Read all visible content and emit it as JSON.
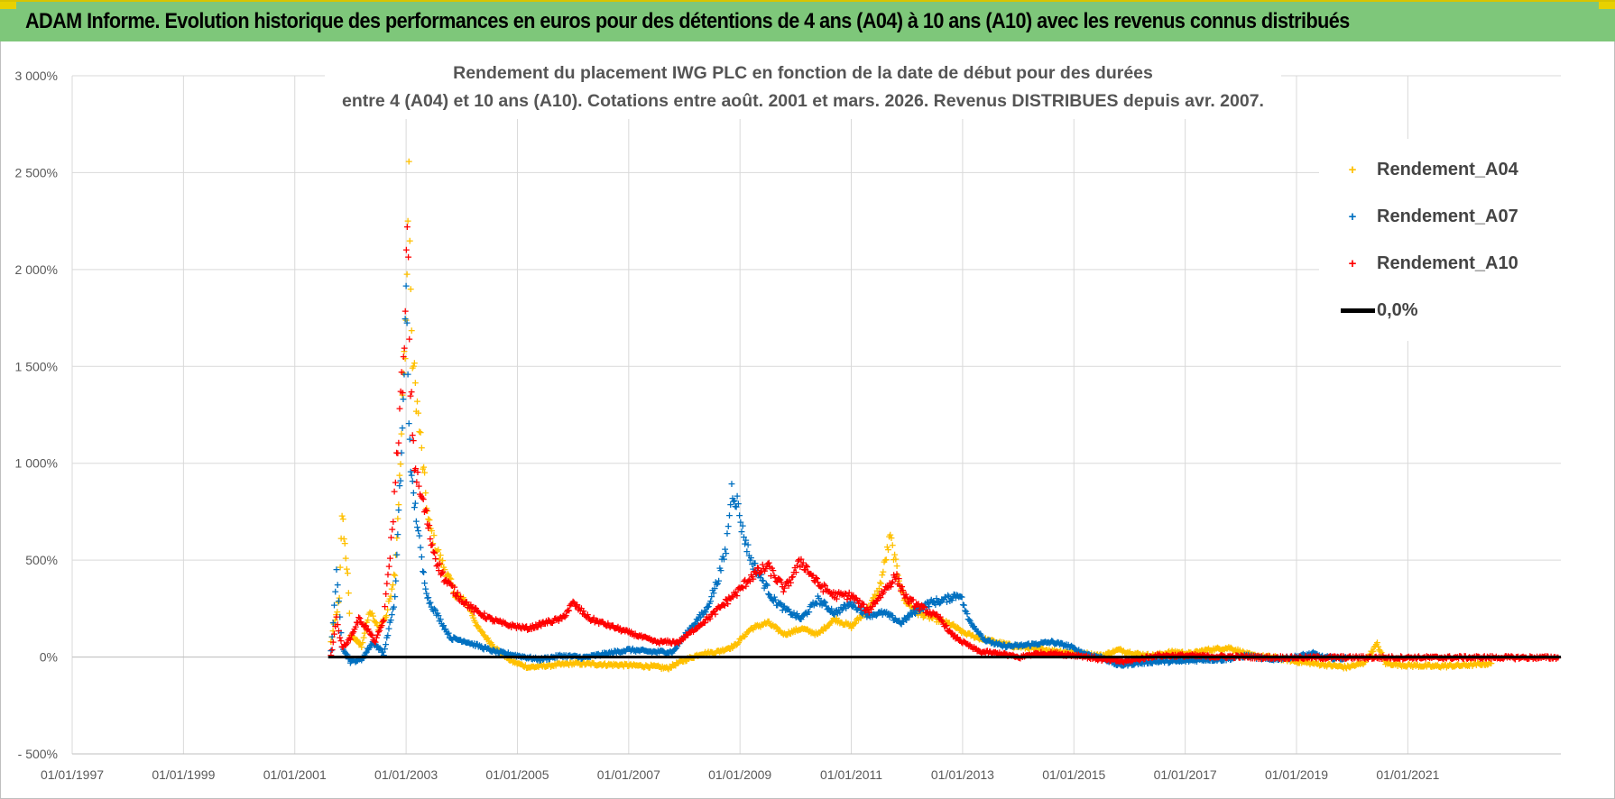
{
  "banner": {
    "title": "ADAM Informe. Evolution historique des performances en euros pour des détentions de 4 ans (A04) à 10 ans (A10) avec les revenus connus distribués"
  },
  "colors": {
    "banner_bg": "#7ec77a",
    "a04": "#ffc000",
    "a07": "#0070c0",
    "a10": "#ff0000",
    "zero": "#000000",
    "grid": "#d9d9d9"
  },
  "chart_data": {
    "type": "scatter",
    "title_line1": "Rendement du placement IWG PLC en fonction de la date de début pour des durées",
    "title_line2": "entre 4 (A04) et 10 ans (A10).  Cotations entre août. 2001 et mars. 2026.  Revenus DISTRIBUES depuis avr. 2007.",
    "x_start": 1997.0,
    "x_end": 2023.75,
    "x_tick_values": [
      1997,
      1999,
      2001,
      2003,
      2005,
      2007,
      2009,
      2011,
      2013,
      2015,
      2017,
      2019,
      2021
    ],
    "x_tick_labels": [
      "01/01/1997",
      "01/01/1999",
      "01/01/2001",
      "01/01/2003",
      "01/01/2005",
      "01/01/2007",
      "01/01/2009",
      "01/01/2011",
      "01/01/2013",
      "01/01/2015",
      "01/01/2017",
      "01/01/2019",
      "01/01/2021"
    ],
    "ylim": [
      -500,
      3000
    ],
    "y_tick_values": [
      -500,
      0,
      500,
      1000,
      1500,
      2000,
      2500,
      3000
    ],
    "y_tick_labels": [
      "- 500%",
      "0%",
      "500%",
      "1 000%",
      "1 500%",
      "2 000%",
      "2 500%",
      "3 000%"
    ],
    "grid": true,
    "legend_position": "top-right",
    "legend": [
      {
        "label": "Rendement_A04",
        "marker": "+",
        "color": "#ffc000"
      },
      {
        "label": "Rendement_A07",
        "marker": "+",
        "color": "#0070c0"
      },
      {
        "label": "Rendement_A10",
        "marker": "+",
        "color": "#ff0000"
      },
      {
        "label": "0,0%",
        "marker": "line",
        "color": "#000000"
      }
    ],
    "zero_line": {
      "x_from": 2001.6,
      "x_to": 2023.75,
      "y": 0
    },
    "series": [
      {
        "name": "Rendement_A04",
        "color": "#ffc000",
        "points": [
          [
            2001.65,
            80
          ],
          [
            2001.8,
            300
          ],
          [
            2001.85,
            745
          ],
          [
            2001.95,
            420
          ],
          [
            2002.0,
            120
          ],
          [
            2002.2,
            60
          ],
          [
            2002.35,
            240
          ],
          [
            2002.5,
            150
          ],
          [
            2002.65,
            220
          ],
          [
            2002.8,
            450
          ],
          [
            2002.9,
            1000
          ],
          [
            2002.95,
            1450
          ],
          [
            2003.0,
            1730
          ],
          [
            2003.05,
            2510
          ],
          [
            2003.1,
            1600
          ],
          [
            2003.2,
            1300
          ],
          [
            2003.3,
            1000
          ],
          [
            2003.4,
            700
          ],
          [
            2003.5,
            600
          ],
          [
            2003.6,
            520
          ],
          [
            2003.75,
            420
          ],
          [
            2003.9,
            320
          ],
          [
            2004.1,
            280
          ],
          [
            2004.3,
            150
          ],
          [
            2004.6,
            50
          ],
          [
            2004.9,
            -20
          ],
          [
            2005.2,
            -50
          ],
          [
            2005.6,
            -40
          ],
          [
            2006.0,
            -30
          ],
          [
            2006.5,
            -35
          ],
          [
            2007.0,
            -40
          ],
          [
            2007.4,
            -45
          ],
          [
            2007.7,
            -55
          ],
          [
            2007.95,
            -20
          ],
          [
            2008.3,
            20
          ],
          [
            2008.6,
            30
          ],
          [
            2008.9,
            60
          ],
          [
            2009.2,
            150
          ],
          [
            2009.5,
            180
          ],
          [
            2009.8,
            120
          ],
          [
            2010.1,
            150
          ],
          [
            2010.4,
            120
          ],
          [
            2010.7,
            200
          ],
          [
            2011.0,
            160
          ],
          [
            2011.3,
            250
          ],
          [
            2011.5,
            350
          ],
          [
            2011.7,
            620
          ],
          [
            2011.8,
            480
          ],
          [
            2011.95,
            300
          ],
          [
            2012.2,
            230
          ],
          [
            2012.5,
            200
          ],
          [
            2012.8,
            170
          ],
          [
            2013.0,
            130
          ],
          [
            2013.3,
            100
          ],
          [
            2013.6,
            80
          ],
          [
            2013.9,
            60
          ],
          [
            2014.2,
            50
          ],
          [
            2014.5,
            40
          ],
          [
            2014.8,
            30
          ],
          [
            2015.2,
            20
          ],
          [
            2015.5,
            10
          ],
          [
            2015.8,
            40
          ],
          [
            2016.1,
            20
          ],
          [
            2016.4,
            10
          ],
          [
            2016.8,
            30
          ],
          [
            2017.1,
            20
          ],
          [
            2017.4,
            40
          ],
          [
            2017.8,
            50
          ],
          [
            2018.2,
            10
          ],
          [
            2018.6,
            0
          ],
          [
            2019.0,
            -20
          ],
          [
            2019.3,
            -30
          ],
          [
            2019.6,
            -40
          ],
          [
            2019.9,
            -50
          ],
          [
            2020.2,
            -30
          ],
          [
            2020.45,
            70
          ],
          [
            2020.6,
            -30
          ],
          [
            2021.0,
            -40
          ],
          [
            2021.5,
            -45
          ],
          [
            2022.0,
            -40
          ],
          [
            2022.5,
            -30
          ]
        ]
      },
      {
        "name": "Rendement_A07",
        "color": "#0070c0",
        "points": [
          [
            2001.65,
            30
          ],
          [
            2001.75,
            430
          ],
          [
            2001.85,
            60
          ],
          [
            2002.0,
            -20
          ],
          [
            2002.2,
            -10
          ],
          [
            2002.4,
            80
          ],
          [
            2002.6,
            20
          ],
          [
            2002.8,
            300
          ],
          [
            2002.9,
            950
          ],
          [
            2002.95,
            1300
          ],
          [
            2003.0,
            1890
          ],
          [
            2003.05,
            1250
          ],
          [
            2003.1,
            900
          ],
          [
            2003.2,
            700
          ],
          [
            2003.3,
            450
          ],
          [
            2003.4,
            300
          ],
          [
            2003.6,
            200
          ],
          [
            2003.8,
            100
          ],
          [
            2004.0,
            90
          ],
          [
            2004.3,
            60
          ],
          [
            2004.6,
            30
          ],
          [
            2005.0,
            10
          ],
          [
            2005.4,
            -10
          ],
          [
            2005.8,
            10
          ],
          [
            2006.2,
            0
          ],
          [
            2006.6,
            20
          ],
          [
            2007.0,
            40
          ],
          [
            2007.4,
            30
          ],
          [
            2007.8,
            30
          ],
          [
            2008.1,
            150
          ],
          [
            2008.4,
            250
          ],
          [
            2008.6,
            400
          ],
          [
            2008.75,
            560
          ],
          [
            2008.85,
            870
          ],
          [
            2008.95,
            800
          ],
          [
            2009.05,
            650
          ],
          [
            2009.2,
            500
          ],
          [
            2009.4,
            400
          ],
          [
            2009.6,
            300
          ],
          [
            2009.8,
            250
          ],
          [
            2010.1,
            200
          ],
          [
            2010.4,
            300
          ],
          [
            2010.7,
            230
          ],
          [
            2011.0,
            280
          ],
          [
            2011.3,
            220
          ],
          [
            2011.6,
            230
          ],
          [
            2011.9,
            180
          ],
          [
            2012.1,
            230
          ],
          [
            2012.4,
            280
          ],
          [
            2012.7,
            300
          ],
          [
            2012.95,
            330
          ],
          [
            2013.1,
            200
          ],
          [
            2013.4,
            90
          ],
          [
            2013.7,
            60
          ],
          [
            2014.0,
            60
          ],
          [
            2014.3,
            70
          ],
          [
            2014.6,
            80
          ],
          [
            2014.9,
            60
          ],
          [
            2015.2,
            20
          ],
          [
            2015.5,
            0
          ],
          [
            2015.8,
            -40
          ],
          [
            2016.1,
            -30
          ],
          [
            2016.5,
            -20
          ],
          [
            2016.9,
            -20
          ],
          [
            2017.3,
            -10
          ],
          [
            2017.7,
            -10
          ],
          [
            2018.1,
            10
          ],
          [
            2018.5,
            -10
          ],
          [
            2018.9,
            0
          ],
          [
            2019.1,
            10
          ],
          [
            2019.3,
            20
          ],
          [
            2019.5,
            0
          ],
          [
            2019.9,
            -5
          ]
        ]
      },
      {
        "name": "Rendement_A10",
        "color": "#ff0000",
        "points": [
          [
            2001.65,
            10
          ],
          [
            2001.75,
            200
          ],
          [
            2001.85,
            50
          ],
          [
            2002.0,
            100
          ],
          [
            2002.15,
            200
          ],
          [
            2002.3,
            150
          ],
          [
            2002.45,
            80
          ],
          [
            2002.6,
            200
          ],
          [
            2002.75,
            650
          ],
          [
            2002.85,
            1100
          ],
          [
            2002.92,
            1400
          ],
          [
            2002.97,
            1550
          ],
          [
            2003.02,
            2240
          ],
          [
            2003.08,
            1400
          ],
          [
            2003.15,
            1000
          ],
          [
            2003.25,
            850
          ],
          [
            2003.35,
            750
          ],
          [
            2003.45,
            600
          ],
          [
            2003.55,
            500
          ],
          [
            2003.7,
            400
          ],
          [
            2003.85,
            350
          ],
          [
            2004.0,
            300
          ],
          [
            2004.2,
            250
          ],
          [
            2004.5,
            200
          ],
          [
            2004.8,
            170
          ],
          [
            2005.2,
            150
          ],
          [
            2005.5,
            180
          ],
          [
            2005.8,
            200
          ],
          [
            2006.0,
            280
          ],
          [
            2006.3,
            200
          ],
          [
            2006.7,
            160
          ],
          [
            2007.1,
            120
          ],
          [
            2007.5,
            80
          ],
          [
            2007.9,
            80
          ],
          [
            2008.2,
            150
          ],
          [
            2008.5,
            220
          ],
          [
            2008.8,
            300
          ],
          [
            2009.0,
            350
          ],
          [
            2009.2,
            420
          ],
          [
            2009.5,
            470
          ],
          [
            2009.8,
            350
          ],
          [
            2010.1,
            500
          ],
          [
            2010.4,
            380
          ],
          [
            2010.7,
            320
          ],
          [
            2011.0,
            320
          ],
          [
            2011.3,
            240
          ],
          [
            2011.6,
            350
          ],
          [
            2011.8,
            420
          ],
          [
            2012.0,
            300
          ],
          [
            2012.3,
            250
          ],
          [
            2012.6,
            200
          ],
          [
            2012.8,
            120
          ],
          [
            2013.0,
            80
          ],
          [
            2013.3,
            30
          ],
          [
            2013.7,
            20
          ],
          [
            2014.0,
            0
          ],
          [
            2014.3,
            20
          ],
          [
            2014.7,
            20
          ],
          [
            2015.1,
            10
          ],
          [
            2015.5,
            -10
          ],
          [
            2015.9,
            -20
          ],
          [
            2016.2,
            -5
          ],
          [
            2016.5,
            10
          ],
          [
            2017.0,
            10
          ],
          [
            2017.5,
            5
          ],
          [
            2018.0,
            5
          ],
          [
            2018.5,
            0
          ],
          [
            2019.0,
            0
          ],
          [
            2019.5,
            0
          ],
          [
            2020.0,
            0
          ],
          [
            2020.5,
            0
          ],
          [
            2021.0,
            0
          ],
          [
            2021.5,
            0
          ],
          [
            2022.0,
            0
          ],
          [
            2022.5,
            0
          ],
          [
            2023.0,
            0
          ],
          [
            2023.7,
            0
          ]
        ]
      }
    ]
  }
}
